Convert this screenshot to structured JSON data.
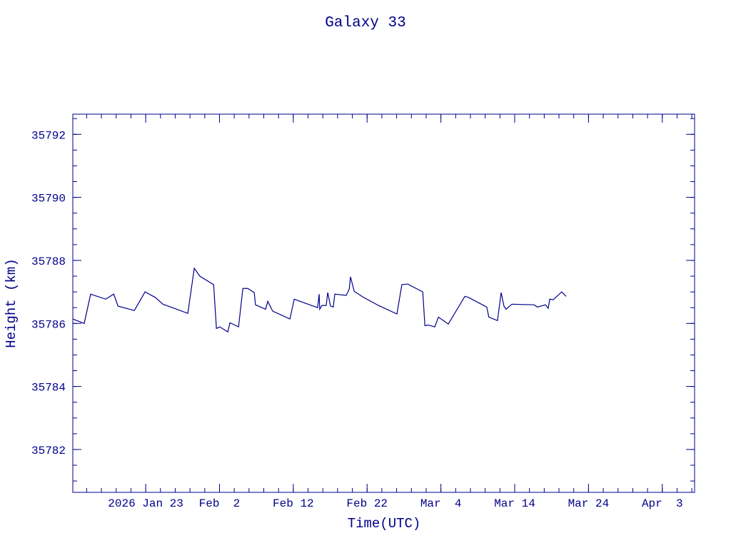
{
  "chart_data": {
    "type": "line",
    "title": "Galaxy 33",
    "x_label": "Time(UTC)",
    "y_label": "Height (km)",
    "color": "#00008b",
    "xlim": [
      "2026-01-13T03:00",
      "2026-04-07T09:00"
    ],
    "xticks": [
      {
        "value": "2026-01-23T00:00",
        "label": "2026 Jan 23"
      },
      {
        "value": "2026-02-02T00:00",
        "label": "Feb  2"
      },
      {
        "value": "2026-02-12T00:00",
        "label": "Feb 12"
      },
      {
        "value": "2026-02-22T00:00",
        "label": "Feb 22"
      },
      {
        "value": "2026-03-04T00:00",
        "label": "Mar  4"
      },
      {
        "value": "2026-03-14T00:00",
        "label": "Mar 14"
      },
      {
        "value": "2026-03-24T00:00",
        "label": "Mar 24"
      },
      {
        "value": "2026-04-03T00:00",
        "label": "Apr  3"
      }
    ],
    "ylim": [
      35780.64,
      35792.64
    ],
    "yticks": [
      35782,
      35784,
      35786,
      35788,
      35790,
      35792
    ],
    "x": [
      "2026-01-13T03:00",
      "2026-01-14T16:00",
      "2026-01-15T13:00",
      "2026-01-17T14:00",
      "2026-01-18T16:00",
      "2026-01-19T06:00",
      "2026-01-21T11:00",
      "2026-01-22T22:00",
      "2026-01-24T08:00",
      "2026-01-25T08:00",
      "2026-01-28T17:00",
      "2026-01-29T14:00",
      "2026-01-30T08:00",
      "2026-02-01T05:00",
      "2026-02-01T14:00",
      "2026-02-02T01:00",
      "2026-02-03T03:00",
      "2026-02-03T10:00",
      "2026-02-04T14:00",
      "2026-02-05T04:00",
      "2026-02-05T20:00",
      "2026-02-06T17:00",
      "2026-02-06T21:00",
      "2026-02-08T06:00",
      "2026-02-08T13:00",
      "2026-02-09T05:00",
      "2026-02-11T13:00",
      "2026-02-12T03:00",
      "2026-02-15T07:00",
      "2026-02-15T12:00",
      "2026-02-15T14:00",
      "2026-02-15T21:00",
      "2026-02-16T11:00",
      "2026-02-16T16:00",
      "2026-02-17T01:00",
      "2026-02-17T10:00",
      "2026-02-17T15:00",
      "2026-02-19T04:00",
      "2026-02-19T14:00",
      "2026-02-19T18:00",
      "2026-02-20T06:00",
      "2026-02-21T10:00",
      "2026-02-23T13:00",
      "2026-02-26T01:00",
      "2026-02-26T17:00",
      "2026-02-27T12:00",
      "2026-03-01T13:00",
      "2026-03-01T20:00",
      "2026-03-02T07:00",
      "2026-03-03T04:00",
      "2026-03-03T16:00",
      "2026-03-05T00:00",
      "2026-03-07T06:00",
      "2026-03-07T19:00",
      "2026-03-10T05:00",
      "2026-03-10T12:00",
      "2026-03-11T16:00",
      "2026-03-12T04:00",
      "2026-03-12T13:00",
      "2026-03-12T20:00",
      "2026-03-13T15:00",
      "2026-03-16T15:00",
      "2026-03-17T02:00",
      "2026-03-18T04:00",
      "2026-03-18T13:00",
      "2026-03-18T18:00",
      "2026-03-19T05:00",
      "2026-03-20T09:00",
      "2026-03-20T23:00"
    ],
    "values": [
      35786.14,
      35786.0,
      35786.93,
      35786.77,
      35786.93,
      35786.55,
      35786.41,
      35787.0,
      35786.82,
      35786.61,
      35786.32,
      35787.75,
      35787.5,
      35787.23,
      35785.84,
      35785.89,
      35785.73,
      35786.02,
      35785.89,
      35787.11,
      35787.11,
      35786.98,
      35786.59,
      35786.45,
      35786.7,
      35786.39,
      35786.14,
      35786.77,
      35786.5,
      35786.93,
      35786.45,
      35786.57,
      35786.57,
      35786.98,
      35786.55,
      35786.52,
      35786.93,
      35786.89,
      35787.09,
      35787.48,
      35787.02,
      35786.84,
      35786.57,
      35786.3,
      35787.23,
      35787.25,
      35787.0,
      35785.93,
      35785.95,
      35785.89,
      35786.2,
      35785.98,
      35786.86,
      35786.82,
      35786.52,
      35786.2,
      35786.09,
      35786.98,
      35786.55,
      35786.45,
      35786.61,
      35786.59,
      35786.52,
      35786.59,
      35786.48,
      35786.77,
      35786.75,
      35787.0,
      35786.86
    ]
  }
}
